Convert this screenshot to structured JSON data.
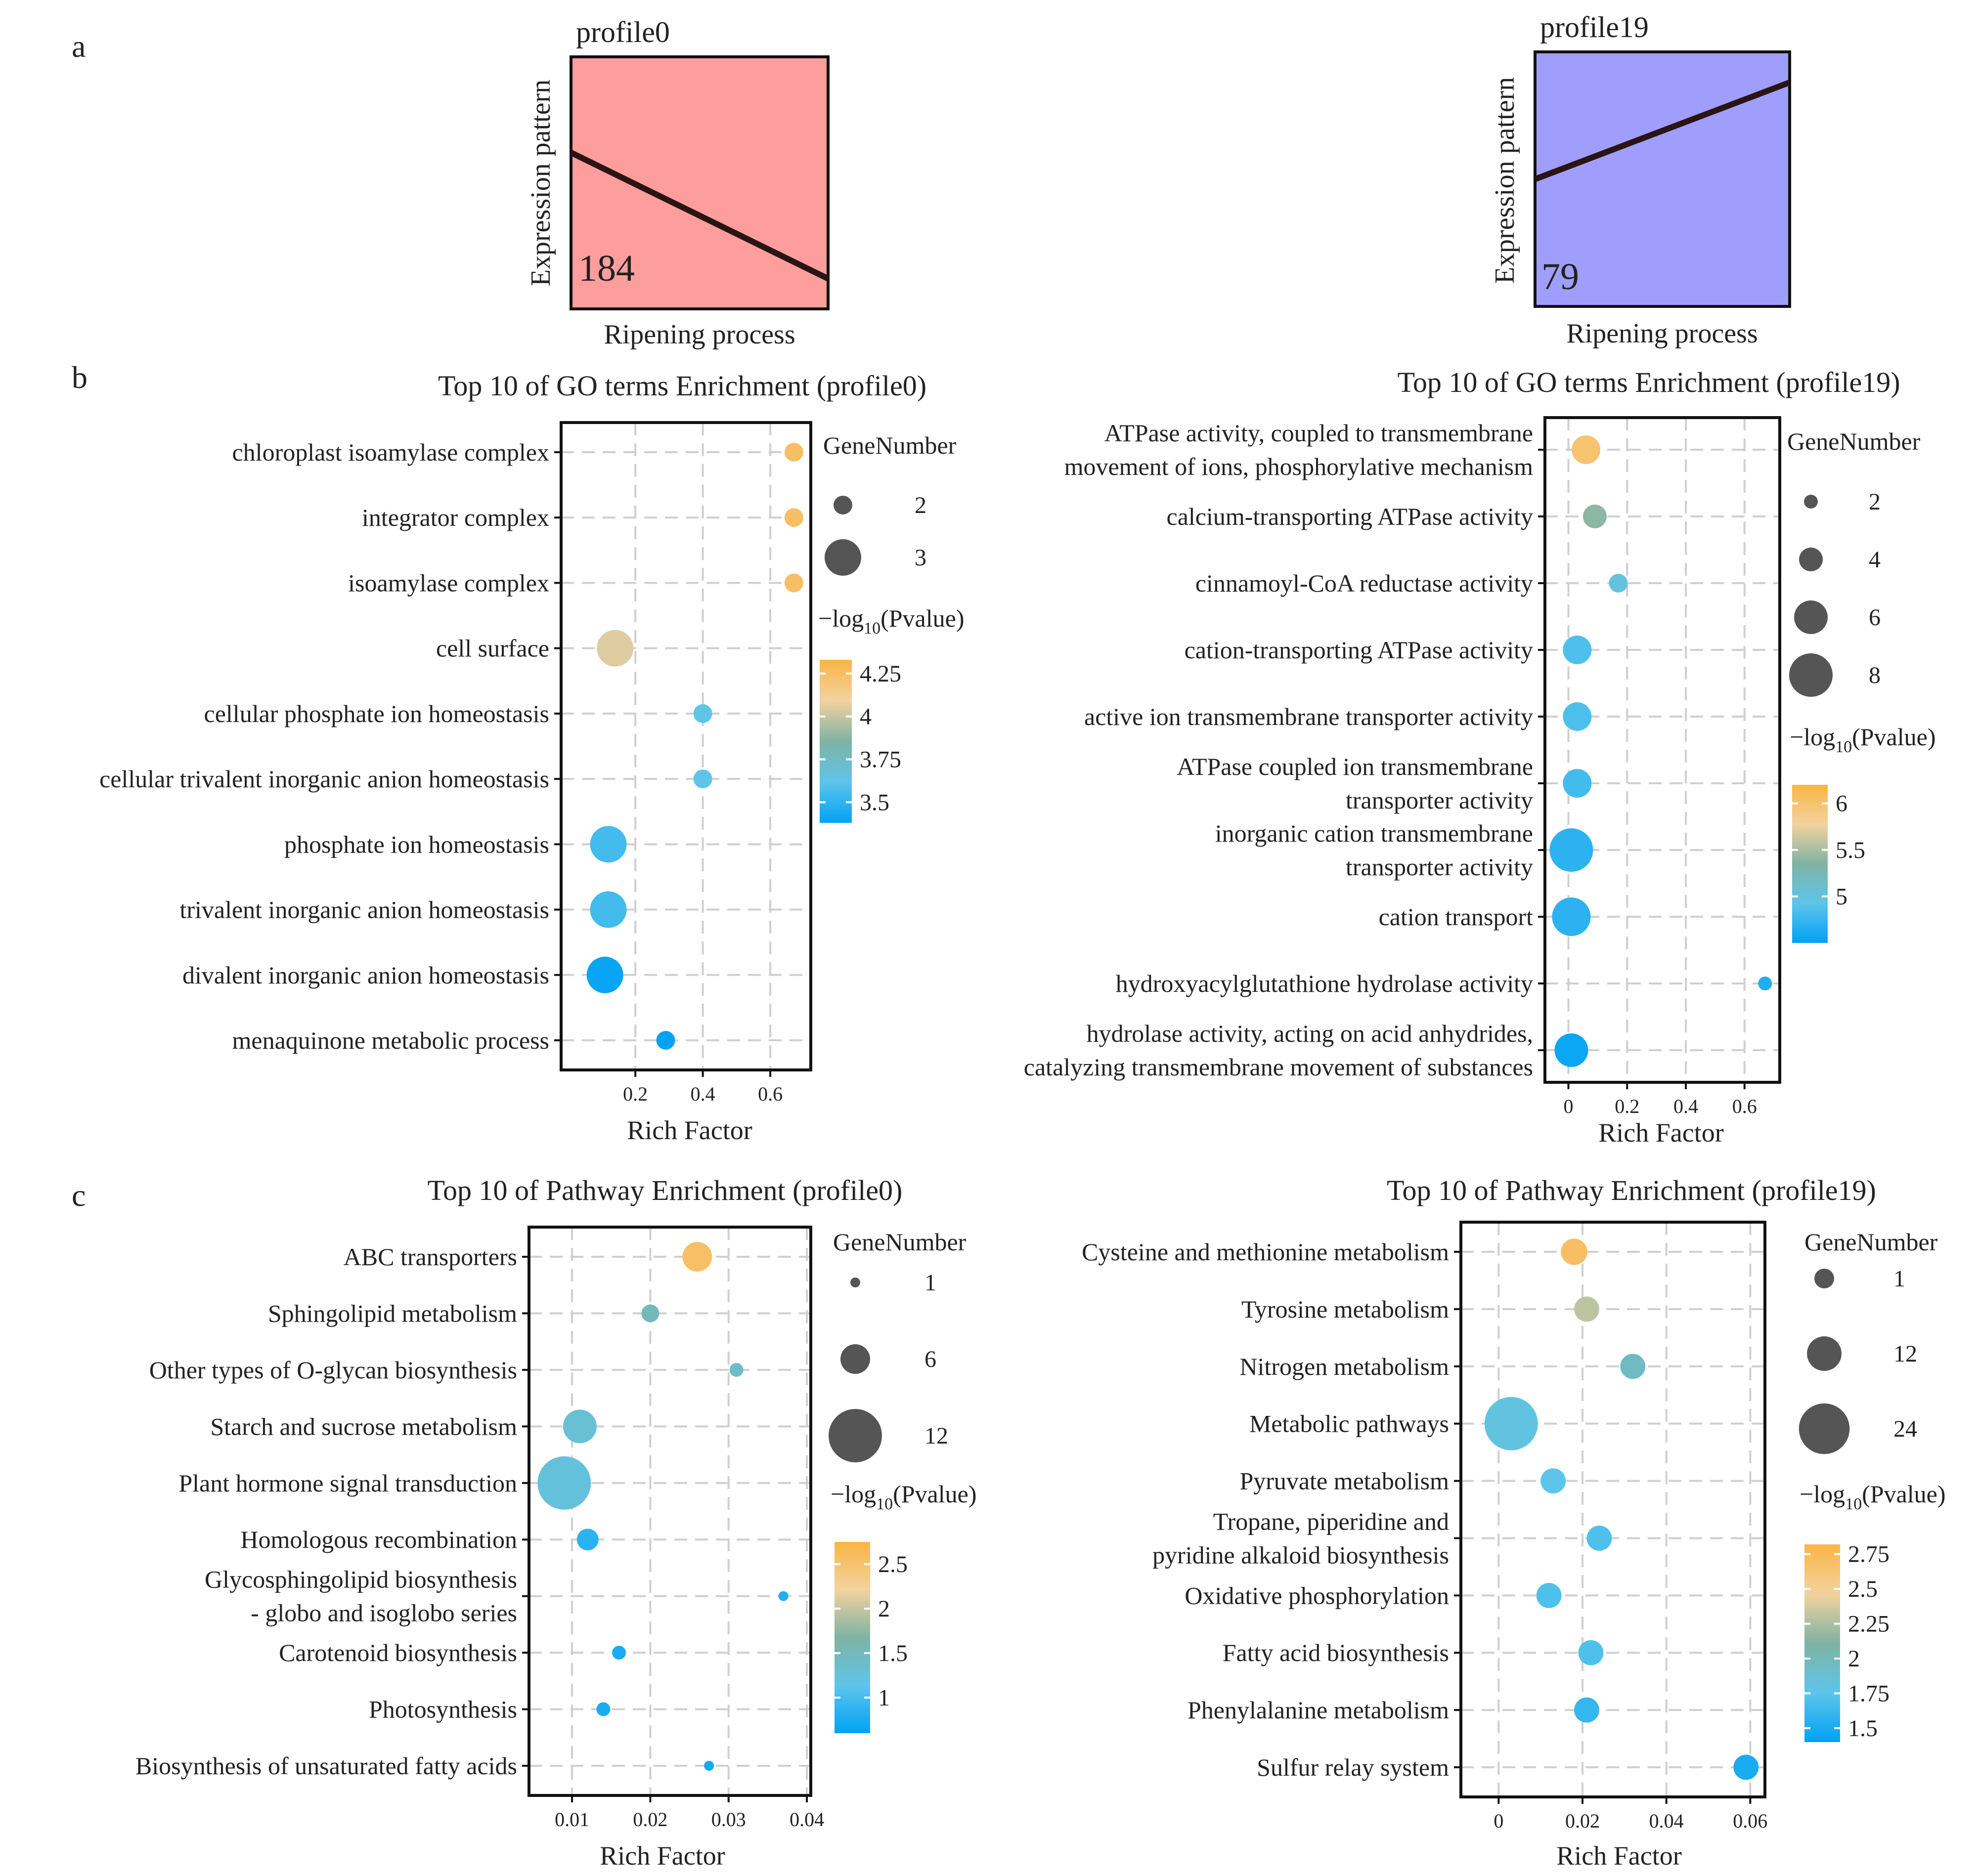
{
  "panel_labels": [
    "a",
    "b",
    "c"
  ],
  "chart_data": [
    {
      "type": "line",
      "id": "a-profile0",
      "title": "profile0",
      "ylabel": "Expression pattern",
      "xlabel": "Ripening process",
      "count_label": "184",
      "background": "#fd9e9d",
      "x": [
        0,
        1
      ],
      "y": [
        0.62,
        0.12
      ],
      "ylim": [
        0,
        1
      ]
    },
    {
      "type": "line",
      "id": "a-profile19",
      "title": "profile19",
      "ylabel": "Expression pattern",
      "xlabel": "Ripening process",
      "count_label": "79",
      "background": "#a09efd",
      "x": [
        0,
        1
      ],
      "y": [
        0.5,
        0.88
      ],
      "ylim": [
        0,
        1
      ]
    },
    {
      "type": "scatter",
      "id": "b-profile0",
      "title": "Top 10 of GO terms Enrichment (profile0)",
      "xlabel": "Rich Factor",
      "ylabel": "",
      "xlim": [
        -0.02,
        0.72
      ],
      "xticks": [
        0.2,
        0.4,
        0.6
      ],
      "tick_labels": [
        "0.2",
        "0.4",
        "0.6"
      ],
      "terms": [
        "chloroplast isoamylase complex",
        "integrator complex",
        "isoamylase complex",
        "cell surface",
        "cellular phosphate ion homeostasis",
        "cellular trivalent inorganic anion homeostasis",
        "phosphate ion homeostasis",
        "trivalent inorganic anion homeostasis",
        "divalent inorganic anion homeostasis",
        "menaquinone metabolic process"
      ],
      "terms_lines": [
        [
          "chloroplast isoamylase complex"
        ],
        [
          "integrator complex"
        ],
        [
          "isoamylase complex"
        ],
        [
          "cell surface"
        ],
        [
          "cellular phosphate ion homeostasis"
        ],
        [
          "cellular trivalent inorganic anion homeostasis"
        ],
        [
          "phosphate ion homeostasis"
        ],
        [
          "trivalent inorganic anion homeostasis"
        ],
        [
          "divalent inorganic anion homeostasis"
        ],
        [
          "menaquinone metabolic process"
        ]
      ],
      "rich_factor": [
        0.67,
        0.67,
        0.67,
        0.14,
        0.4,
        0.4,
        0.12,
        0.12,
        0.11,
        0.29
      ],
      "gene_number": [
        2,
        2,
        2,
        3,
        2,
        2,
        3,
        3,
        3,
        2
      ],
      "neg_log10_pvalue": [
        4.25,
        4.25,
        4.25,
        4.05,
        3.62,
        3.62,
        3.55,
        3.55,
        3.4,
        3.3
      ],
      "size_legend": {
        "title": "GeneNumber",
        "values": [
          2,
          3
        ],
        "labels": [
          "2",
          "3"
        ]
      },
      "color_legend": {
        "title_main": "−log",
        "title_sub": "10",
        "title_tail": "(Pvalue)",
        "range": [
          3.38,
          4.33
        ],
        "ticks": [
          4.25,
          4,
          3.75,
          3.5
        ],
        "labels": [
          "4.25",
          "4",
          "3.75",
          "3.5"
        ]
      },
      "size_scale": [
        2,
        3
      ]
    },
    {
      "type": "scatter",
      "id": "b-profile19",
      "title": "Top 10 of GO terms Enrichment (profile19)",
      "xlabel": "Rich Factor",
      "ylabel": "",
      "xlim": [
        -0.08,
        0.72
      ],
      "xticks": [
        0,
        0.2,
        0.4,
        0.6
      ],
      "tick_labels": [
        "0",
        "0.2",
        "0.4",
        "0.6"
      ],
      "terms": [
        "ATPase activity, coupled to transmembrane movement of ions, phosphorylative mechanism",
        "calcium-transporting ATPase activity",
        "cinnamoyl-CoA reductase activity",
        "cation-transporting ATPase activity",
        "active ion transmembrane transporter activity",
        "ATPase coupled ion transmembrane transporter activity",
        "inorganic cation transmembrane transporter activity",
        "cation transport",
        "hydroxyacylglutathione hydrolase activity",
        "hydrolase activity, acting on acid anhydrides, catalyzing transmembrane movement of substances"
      ],
      "terms_lines": [
        [
          "ATPase activity, coupled to transmembrane",
          "movement of ions, phosphorylative mechanism"
        ],
        [
          "calcium-transporting ATPase activity"
        ],
        [
          "cinnamoyl-CoA reductase activity"
        ],
        [
          "cation-transporting ATPase activity"
        ],
        [
          "active ion transmembrane transporter activity"
        ],
        [
          "ATPase coupled ion transmembrane",
          "transporter activity"
        ],
        [
          "inorganic cation transmembrane",
          "transporter activity"
        ],
        [
          "cation transport"
        ],
        [
          "hydroxyacylglutathione hydrolase activity"
        ],
        [
          "hydrolase activity, acting on acid anhydrides,",
          "catalyzing transmembrane movement of substances"
        ]
      ],
      "rich_factor": [
        0.06,
        0.09,
        0.17,
        0.03,
        0.03,
        0.03,
        0.01,
        0.01,
        0.67,
        0.01
      ],
      "gene_number": [
        5,
        4,
        3,
        5,
        5,
        5,
        8,
        7,
        2,
        6
      ],
      "neg_log10_pvalue": [
        6.0,
        5.4,
        5.0,
        4.85,
        4.85,
        4.8,
        4.7,
        4.7,
        4.65,
        4.55
      ],
      "size_legend": {
        "title": "GeneNumber",
        "values": [
          2,
          4,
          6,
          8
        ],
        "labels": [
          "2",
          "4",
          "6",
          "8"
        ]
      },
      "color_legend": {
        "title_main": "−log",
        "title_sub": "10",
        "title_tail": "(Pvalue)",
        "range": [
          4.5,
          6.2
        ],
        "ticks": [
          6,
          5.5,
          5
        ],
        "labels": [
          "6",
          "5.5",
          "5"
        ]
      },
      "size_scale": [
        2,
        8
      ]
    },
    {
      "type": "scatter",
      "id": "c-profile0",
      "title": "Top 10 of Pathway Enrichment (profile0)",
      "xlabel": "Rich Factor",
      "ylabel": "",
      "xlim": [
        0.0045,
        0.0405
      ],
      "xticks": [
        0.01,
        0.02,
        0.03,
        0.04
      ],
      "tick_labels": [
        "0.01",
        "0.02",
        "0.03",
        "0.04"
      ],
      "terms": [
        "ABC transporters",
        "Sphingolipid metabolism",
        "Other types of O-glycan biosynthesis",
        "Starch and sucrose metabolism",
        "Plant hormone signal transduction",
        "Homologous recombination",
        "Glycosphingolipid biosynthesis - globo and isoglobo series",
        "Carotenoid biosynthesis",
        "Photosynthesis",
        "Biosynthesis of unsaturated fatty acids"
      ],
      "terms_lines": [
        [
          "ABC transporters"
        ],
        [
          "Sphingolipid metabolism"
        ],
        [
          "Other types of O-glycan biosynthesis"
        ],
        [
          "Starch and sucrose metabolism"
        ],
        [
          "Plant hormone signal transduction"
        ],
        [
          "Homologous recombination"
        ],
        [
          "Glycosphingolipid biosynthesis",
          "- globo and isoglobo series"
        ],
        [
          "Carotenoid biosynthesis"
        ],
        [
          "Photosynthesis"
        ],
        [
          "Biosynthesis of unsaturated fatty acids"
        ]
      ],
      "rich_factor": [
        0.026,
        0.02,
        0.031,
        0.011,
        0.009,
        0.012,
        0.037,
        0.016,
        0.014,
        0.0275
      ],
      "gene_number": [
        6,
        3,
        2,
        7,
        12,
        4,
        1,
        2,
        2,
        1
      ],
      "neg_log10_pvalue": [
        2.55,
        1.5,
        1.4,
        1.3,
        1.25,
        0.85,
        0.8,
        0.75,
        0.75,
        0.7
      ],
      "size_legend": {
        "title": "GeneNumber",
        "values": [
          1,
          6,
          12
        ],
        "labels": [
          "1",
          "6",
          "12"
        ]
      },
      "color_legend": {
        "title_main": "−log",
        "title_sub": "10",
        "title_tail": "(Pvalue)",
        "range": [
          0.6,
          2.75
        ],
        "ticks": [
          2.5,
          2,
          1.5,
          1
        ],
        "labels": [
          "2.5",
          "2",
          "1.5",
          "1"
        ]
      },
      "size_scale": [
        1,
        12
      ]
    },
    {
      "type": "scatter",
      "id": "c-profile19",
      "title": "Top 10 of Pathway Enrichment (profile19)",
      "xlabel": "Rich Factor",
      "ylabel": "",
      "xlim": [
        -0.009,
        0.0635
      ],
      "xticks": [
        0,
        0.02,
        0.04,
        0.06
      ],
      "tick_labels": [
        "0",
        "0.02",
        "0.04",
        "0.06"
      ],
      "terms": [
        "Cysteine and methionine metabolism",
        "Tyrosine metabolism",
        "Nitrogen metabolism",
        "Metabolic pathways",
        "Pyruvate metabolism",
        "Tropane, piperidine and pyridine alkaloid biosynthesis",
        "Oxidative phosphorylation",
        "Fatty acid biosynthesis",
        "Phenylalanine metabolism",
        "Sulfur relay system"
      ],
      "terms_lines": [
        [
          "Cysteine and methionine metabolism"
        ],
        [
          "Tyrosine metabolism"
        ],
        [
          "Nitrogen metabolism"
        ],
        [
          "Metabolic pathways"
        ],
        [
          "Pyruvate metabolism"
        ],
        [
          "Tropane, piperidine and",
          "pyridine alkaloid biosynthesis"
        ],
        [
          "Oxidative phosphorylation"
        ],
        [
          "Fatty acid biosynthesis"
        ],
        [
          "Phenylalanine metabolism"
        ],
        [
          "Sulfur relay system"
        ]
      ],
      "rich_factor": [
        0.018,
        0.021,
        0.032,
        0.003,
        0.013,
        0.024,
        0.012,
        0.022,
        0.021,
        0.059
      ],
      "gene_number": [
        6,
        5,
        5,
        26,
        5,
        5,
        5,
        5,
        5,
        5
      ],
      "neg_log10_pvalue": [
        2.7,
        2.3,
        1.95,
        1.8,
        1.75,
        1.7,
        1.7,
        1.7,
        1.6,
        1.5
      ],
      "size_legend": {
        "title": "GeneNumber",
        "values": [
          1,
          12,
          24
        ],
        "labels": [
          "1",
          "12",
          "24"
        ]
      },
      "color_legend": {
        "title_main": "−log",
        "title_sub": "10",
        "title_tail": "(Pvalue)",
        "range": [
          1.4,
          2.82
        ],
        "ticks": [
          2.75,
          2.5,
          2.25,
          2,
          1.75,
          1.5
        ],
        "labels": [
          "2.75",
          "2.5",
          "2.25",
          "2",
          "1.75",
          "1.5"
        ]
      },
      "size_scale": [
        1,
        26
      ]
    }
  ],
  "colors": {
    "high": "#f9b545",
    "mid_high": "#f3d29f",
    "mid": "#7fb3a3",
    "mid_low": "#5ec5ea",
    "low": "#00a2f5",
    "bubble_legend": "#555555",
    "line": "#2a1414"
  }
}
